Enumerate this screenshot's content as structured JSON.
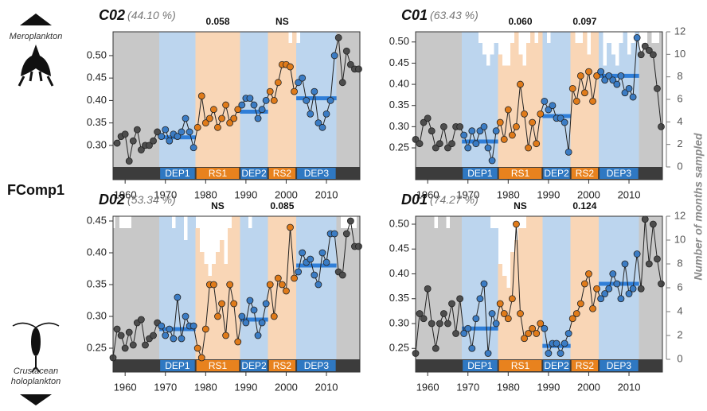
{
  "figure": {
    "y_label": "FComp1",
    "y2_label": "Number of months sampled",
    "top_group": "Meroplankton",
    "bottom_group": [
      "Crustacean",
      "holoplankton"
    ]
  },
  "chart_data": [
    {
      "type": "line",
      "title": "C02",
      "subtitle": "(44.10 %)",
      "x": [
        1957,
        1958,
        1959,
        1960,
        1961,
        1962,
        1963,
        1964,
        1965,
        1966,
        1967,
        1968,
        1969,
        1970,
        1971,
        1972,
        1973,
        1974,
        1975,
        1976,
        1977,
        1978,
        1979,
        1980,
        1981,
        1982,
        1983,
        1984,
        1985,
        1986,
        1987,
        1988,
        1989,
        1990,
        1991,
        1992,
        1993,
        1994,
        1995,
        1996,
        1997,
        1998,
        1999,
        2000,
        2001,
        2002,
        2003,
        2004,
        2005,
        2006,
        2007,
        2008,
        2009,
        2010,
        2011,
        2012,
        2013,
        2014,
        2015,
        2016,
        2017,
        2018
      ],
      "values": [
        null,
        0.305,
        0.32,
        0.325,
        0.265,
        0.31,
        0.335,
        0.29,
        0.3,
        0.3,
        0.31,
        0.33,
        0.32,
        0.335,
        0.31,
        0.325,
        0.32,
        0.33,
        0.36,
        0.33,
        0.295,
        0.34,
        0.41,
        0.35,
        0.36,
        0.38,
        0.34,
        0.36,
        0.39,
        0.35,
        0.36,
        0.38,
        0.39,
        0.405,
        0.405,
        0.39,
        0.36,
        0.38,
        0.4,
        0.42,
        0.4,
        0.44,
        0.48,
        0.48,
        0.475,
        0.42,
        0.44,
        0.45,
        0.4,
        0.37,
        0.42,
        0.35,
        0.34,
        0.37,
        0.4,
        0.5,
        0.54,
        0.44,
        0.51,
        0.48,
        0.47,
        0.47
      ],
      "months": [
        12,
        12,
        12,
        12,
        12,
        12,
        12,
        12,
        12,
        12,
        12,
        12,
        12,
        12,
        12,
        12,
        12,
        12,
        12,
        12,
        12,
        12,
        12,
        12,
        12,
        12,
        12,
        12,
        12,
        12,
        12,
        12,
        12,
        12,
        12,
        12,
        12,
        12,
        12,
        12,
        12,
        12,
        12,
        12,
        11,
        12,
        11,
        12,
        12,
        12,
        12,
        12,
        12,
        12,
        12,
        12,
        12,
        12,
        12,
        12,
        12,
        12
      ],
      "xlim": [
        1957,
        2018.3
      ],
      "xticks": [
        1960,
        1970,
        1980,
        1990,
        2000,
        2010
      ],
      "ylim": [
        0.252,
        0.553
      ],
      "yticks": [
        {
          "value": 0.3,
          "label": "0.30"
        },
        0.35,
        {
          "value": 0.4,
          "label": "0.40"
        },
        0.45,
        {
          "value": 0.5,
          "label": "0.50"
        }
      ],
      "y2lim": [
        0,
        12
      ],
      "base_color": "#c8c8c8",
      "base_point_color": "#4d4d4d",
      "line_color": "#222222",
      "mean_color": "#2f7ed8",
      "strip_color": "#3c3c3c",
      "phases": [
        {
          "name": "DEP1",
          "start": 1968.5,
          "end": 1977.5,
          "mean": 0.318,
          "color": "#bcd5ee",
          "point_color": "#3b7cc4",
          "strip_color": "#2f78c2"
        },
        {
          "name": "RS1",
          "start": 1977.5,
          "end": 1988.5,
          "note": "0.058",
          "color": "#f9d6b6",
          "point_color": "#e07b1a",
          "strip_color": "#e8821e"
        },
        {
          "name": "DEP2",
          "start": 1988.5,
          "end": 1995.5,
          "mean": 0.375,
          "color": "#bcd5ee",
          "point_color": "#3b7cc4",
          "strip_color": "#2f78c2"
        },
        {
          "name": "RS2",
          "start": 1995.5,
          "end": 2002.5,
          "note": "NS",
          "color": "#f9d6b6",
          "point_color": "#e07b1a",
          "strip_color": "#e8821e"
        },
        {
          "name": "DEP3",
          "start": 2002.5,
          "end": 2012.5,
          "mean": 0.405,
          "color": "#bcd5ee",
          "point_color": "#3b7cc4",
          "strip_color": "#2f78c2"
        }
      ]
    },
    {
      "type": "line",
      "title": "C01",
      "subtitle": "(63.43 %)",
      "x": [
        1957,
        1958,
        1959,
        1960,
        1961,
        1962,
        1963,
        1964,
        1965,
        1966,
        1967,
        1968,
        1969,
        1970,
        1971,
        1972,
        1973,
        1974,
        1975,
        1976,
        1977,
        1978,
        1979,
        1980,
        1981,
        1982,
        1983,
        1984,
        1985,
        1986,
        1987,
        1988,
        1989,
        1990,
        1991,
        1992,
        1993,
        1994,
        1995,
        1996,
        1997,
        1998,
        1999,
        2000,
        2001,
        2002,
        2003,
        2004,
        2005,
        2006,
        2007,
        2008,
        2009,
        2010,
        2011,
        2012,
        2013,
        2014,
        2015,
        2016,
        2017,
        2018
      ],
      "values": [
        0.27,
        0.26,
        0.31,
        0.32,
        0.29,
        0.25,
        0.26,
        0.3,
        0.25,
        0.26,
        0.3,
        0.3,
        0.28,
        0.25,
        0.29,
        0.26,
        0.29,
        0.3,
        0.25,
        0.22,
        0.29,
        0.31,
        0.27,
        0.34,
        0.28,
        0.3,
        0.4,
        0.33,
        0.25,
        0.31,
        0.26,
        0.33,
        0.36,
        0.34,
        0.35,
        0.32,
        0.32,
        0.31,
        0.24,
        0.39,
        0.36,
        0.42,
        0.38,
        0.43,
        0.36,
        0.42,
        0.43,
        0.41,
        0.42,
        0.41,
        0.4,
        0.42,
        0.38,
        0.39,
        0.37,
        0.51,
        0.47,
        0.49,
        0.48,
        0.47,
        0.39,
        0.3
      ],
      "months": [
        12,
        12,
        12,
        12,
        12,
        12,
        12,
        12,
        12,
        12,
        12,
        12,
        12,
        12,
        12,
        12,
        11,
        10,
        9,
        10,
        11,
        10,
        9,
        9,
        11,
        12,
        10,
        9,
        11,
        12,
        11,
        12,
        12,
        11,
        12,
        12,
        12,
        12,
        12,
        12,
        11,
        11,
        12,
        10,
        12,
        12,
        12,
        9,
        11,
        10,
        9,
        11,
        12,
        10,
        11,
        12,
        10,
        11,
        12,
        11,
        11,
        12
      ],
      "xlim": [
        1957,
        2018.3
      ],
      "xticks": [
        1960,
        1970,
        1980,
        1990,
        2000,
        2010
      ],
      "ylim": [
        0.205,
        0.524
      ],
      "yticks": [
        0.25,
        {
          "value": 0.3,
          "label": "0.30"
        },
        0.35,
        {
          "value": 0.4,
          "label": "0.40"
        },
        0.45,
        {
          "value": 0.5,
          "label": "0.50"
        }
      ],
      "y2lim": [
        0,
        12
      ],
      "y2ticks": [
        0,
        2,
        4,
        6,
        8,
        10,
        12
      ],
      "base_color": "#c8c8c8",
      "base_point_color": "#4d4d4d",
      "line_color": "#222222",
      "mean_color": "#2f7ed8",
      "strip_color": "#3c3c3c",
      "phases": [
        {
          "name": "DEP1",
          "start": 1968.5,
          "end": 1977.5,
          "mean": 0.265,
          "color": "#bcd5ee",
          "point_color": "#3b7cc4",
          "strip_color": "#2f78c2"
        },
        {
          "name": "RS1",
          "start": 1977.5,
          "end": 1988.5,
          "note": "0.060",
          "color": "#f9d6b6",
          "point_color": "#e07b1a",
          "strip_color": "#e8821e"
        },
        {
          "name": "DEP2",
          "start": 1988.5,
          "end": 1995.5,
          "mean": 0.325,
          "color": "#bcd5ee",
          "point_color": "#3b7cc4",
          "strip_color": "#2f78c2"
        },
        {
          "name": "RS2",
          "start": 1995.5,
          "end": 2002.5,
          "note": "0.097",
          "color": "#f9d6b6",
          "point_color": "#e07b1a",
          "strip_color": "#e8821e"
        },
        {
          "name": "DEP3",
          "start": 2002.5,
          "end": 2012.5,
          "mean": 0.42,
          "color": "#bcd5ee",
          "point_color": "#3b7cc4",
          "strip_color": "#2f78c2"
        }
      ]
    },
    {
      "type": "line",
      "title": "D02",
      "subtitle": "(53.34 %)",
      "x": [
        1957,
        1958,
        1959,
        1960,
        1961,
        1962,
        1963,
        1964,
        1965,
        1966,
        1967,
        1968,
        1969,
        1970,
        1971,
        1972,
        1973,
        1974,
        1975,
        1976,
        1977,
        1978,
        1979,
        1980,
        1981,
        1982,
        1983,
        1984,
        1985,
        1986,
        1987,
        1988,
        1989,
        1990,
        1991,
        1992,
        1993,
        1994,
        1995,
        1996,
        1997,
        1998,
        1999,
        2000,
        2001,
        2002,
        2003,
        2004,
        2005,
        2006,
        2007,
        2008,
        2009,
        2010,
        2011,
        2012,
        2013,
        2014,
        2015,
        2016,
        2017,
        2018
      ],
      "values": [
        0.235,
        0.28,
        0.27,
        0.25,
        0.275,
        0.255,
        0.29,
        0.295,
        0.255,
        0.265,
        0.27,
        0.29,
        0.285,
        0.27,
        0.28,
        0.265,
        0.33,
        0.265,
        0.3,
        0.285,
        0.285,
        0.25,
        0.235,
        0.28,
        0.35,
        0.35,
        0.3,
        0.32,
        0.27,
        0.35,
        0.32,
        0.26,
        0.3,
        0.29,
        0.325,
        0.31,
        0.27,
        0.29,
        0.32,
        0.35,
        0.3,
        0.36,
        0.35,
        0.34,
        0.44,
        0.36,
        0.37,
        0.4,
        0.385,
        0.39,
        0.365,
        0.35,
        0.4,
        0.385,
        0.43,
        0.43,
        0.37,
        0.365,
        0.43,
        0.45,
        0.41,
        0.41
      ],
      "months": [
        11,
        12,
        11,
        11,
        11,
        12,
        12,
        12,
        12,
        12,
        12,
        12,
        12,
        12,
        12,
        11,
        12,
        12,
        10,
        12,
        12,
        11,
        9,
        8,
        7,
        8,
        9,
        10,
        8,
        11,
        12,
        12,
        12,
        12,
        11,
        12,
        12,
        12,
        12,
        12,
        12,
        12,
        12,
        12,
        12,
        12,
        12,
        12,
        12,
        12,
        12,
        12,
        12,
        12,
        12,
        12,
        12,
        11,
        11,
        11,
        11,
        12
      ],
      "xlim": [
        1957,
        2018.3
      ],
      "xticks": [
        1960,
        1970,
        1980,
        1990,
        2000,
        2010
      ],
      "ylim": [
        0.2325,
        0.4575
      ],
      "yticks": [
        0.25,
        {
          "value": 0.3,
          "label": "0.30"
        },
        0.35,
        {
          "value": 0.4,
          "label": "0.40"
        },
        0.45
      ],
      "y2lim": [
        0,
        12
      ],
      "base_color": "#c8c8c8",
      "base_point_color": "#4d4d4d",
      "line_color": "#222222",
      "mean_color": "#2f7ed8",
      "strip_color": "#3c3c3c",
      "phases": [
        {
          "name": "DEP1",
          "start": 1968.5,
          "end": 1977.5,
          "mean": 0.28,
          "color": "#bcd5ee",
          "point_color": "#3b7cc4",
          "strip_color": "#2f78c2"
        },
        {
          "name": "RS1",
          "start": 1977.5,
          "end": 1988.5,
          "note": "NS",
          "color": "#f9d6b6",
          "point_color": "#e07b1a",
          "strip_color": "#e8821e"
        },
        {
          "name": "DEP2",
          "start": 1988.5,
          "end": 1995.5,
          "mean": 0.295,
          "color": "#bcd5ee",
          "point_color": "#3b7cc4",
          "strip_color": "#2f78c2"
        },
        {
          "name": "RS2",
          "start": 1995.5,
          "end": 2002.5,
          "note": "0.085",
          "color": "#f9d6b6",
          "point_color": "#e07b1a",
          "strip_color": "#e8821e"
        },
        {
          "name": "DEP3",
          "start": 2002.5,
          "end": 2012.5,
          "mean": 0.38,
          "color": "#bcd5ee",
          "point_color": "#3b7cc4",
          "strip_color": "#2f78c2"
        }
      ]
    },
    {
      "type": "line",
      "title": "D01",
      "subtitle": "(74.27 %)",
      "x": [
        1957,
        1958,
        1959,
        1960,
        1961,
        1962,
        1963,
        1964,
        1965,
        1966,
        1967,
        1968,
        1969,
        1970,
        1971,
        1972,
        1973,
        1974,
        1975,
        1976,
        1977,
        1978,
        1979,
        1980,
        1981,
        1982,
        1983,
        1984,
        1985,
        1986,
        1987,
        1988,
        1989,
        1990,
        1991,
        1992,
        1993,
        1994,
        1995,
        1996,
        1997,
        1998,
        1999,
        2000,
        2001,
        2002,
        2003,
        2004,
        2005,
        2006,
        2007,
        2008,
        2009,
        2010,
        2011,
        2012,
        2013,
        2014,
        2015,
        2016,
        2017,
        2018
      ],
      "values": [
        0.24,
        0.32,
        0.31,
        0.37,
        0.3,
        0.25,
        0.3,
        0.32,
        0.3,
        0.34,
        0.28,
        0.35,
        0.28,
        0.29,
        0.25,
        0.31,
        0.35,
        0.38,
        0.24,
        0.32,
        0.3,
        0.34,
        0.32,
        0.31,
        0.35,
        0.5,
        0.32,
        0.27,
        0.28,
        0.29,
        0.28,
        0.3,
        0.29,
        0.24,
        0.26,
        0.26,
        0.24,
        0.26,
        0.28,
        0.31,
        0.32,
        0.34,
        0.38,
        0.4,
        0.33,
        0.37,
        0.35,
        0.36,
        0.37,
        0.4,
        0.38,
        0.35,
        0.42,
        0.36,
        0.37,
        0.44,
        0.37,
        0.51,
        0.42,
        0.5,
        0.43,
        0.38
      ],
      "months": [
        12,
        12,
        12,
        12,
        12,
        11,
        12,
        12,
        11,
        12,
        12,
        12,
        12,
        12,
        12,
        12,
        12,
        12,
        12,
        11,
        11,
        8,
        7,
        6,
        9,
        10,
        11,
        11,
        12,
        12,
        12,
        12,
        12,
        12,
        12,
        12,
        12,
        12,
        12,
        12,
        12,
        12,
        12,
        12,
        12,
        12,
        12,
        12,
        12,
        12,
        12,
        12,
        12,
        12,
        12,
        12,
        12,
        12,
        12,
        12,
        12,
        12
      ],
      "xlim": [
        1957,
        2018.3
      ],
      "xticks": [
        1960,
        1970,
        1980,
        1990,
        2000,
        2010
      ],
      "ylim": [
        0.228,
        0.516
      ],
      "yticks": [
        0.25,
        {
          "value": 0.3,
          "label": "0.30"
        },
        0.35,
        {
          "value": 0.4,
          "label": "0.40"
        },
        0.45,
        {
          "value": 0.5,
          "label": "0.50"
        }
      ],
      "y2lim": [
        0,
        12
      ],
      "y2ticks": [
        0,
        2,
        4,
        6,
        8,
        10,
        12
      ],
      "base_color": "#c8c8c8",
      "base_point_color": "#4d4d4d",
      "line_color": "#222222",
      "mean_color": "#2f7ed8",
      "strip_color": "#3c3c3c",
      "phases": [
        {
          "name": "DEP1",
          "start": 1968.5,
          "end": 1977.5,
          "mean": 0.29,
          "color": "#bcd5ee",
          "point_color": "#3b7cc4",
          "strip_color": "#2f78c2"
        },
        {
          "name": "RS1",
          "start": 1977.5,
          "end": 1988.5,
          "note": "NS",
          "color": "#f9d6b6",
          "point_color": "#e07b1a",
          "strip_color": "#e8821e"
        },
        {
          "name": "DEP2",
          "start": 1988.5,
          "end": 1995.5,
          "mean": 0.255,
          "color": "#bcd5ee",
          "point_color": "#3b7cc4",
          "strip_color": "#2f78c2"
        },
        {
          "name": "RS2",
          "start": 1995.5,
          "end": 2002.5,
          "note": "0.124",
          "color": "#f9d6b6",
          "point_color": "#e07b1a",
          "strip_color": "#e8821e"
        },
        {
          "name": "DEP3",
          "start": 2002.5,
          "end": 2012.5,
          "mean": 0.38,
          "color": "#bcd5ee",
          "point_color": "#3b7cc4",
          "strip_color": "#2f78c2"
        }
      ]
    }
  ]
}
